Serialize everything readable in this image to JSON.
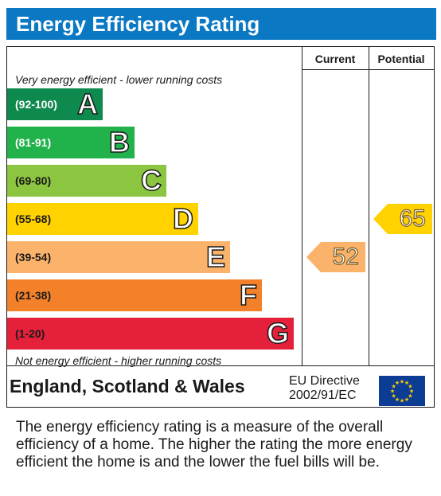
{
  "title": "Energy Efficiency Rating",
  "columns": {
    "current": "Current",
    "potential": "Potential"
  },
  "top_caption": "Very energy efficient - lower running costs",
  "bottom_caption": "Not energy efficient - higher running costs",
  "footer": {
    "country": "England, Scotland & Wales",
    "directive_line1": "EU Directive",
    "directive_line2": "2002/91/EC"
  },
  "description": "The energy efficiency rating is a measure of the overall efficiency of a home. The higher the rating the more energy efficient the home is and the lower the fuel bills will be.",
  "chart_data": {
    "type": "bar",
    "title": "Energy Efficiency Rating",
    "categories": [
      "A",
      "B",
      "C",
      "D",
      "E",
      "F",
      "G"
    ],
    "bands": [
      {
        "letter": "A",
        "range": "(92-100)",
        "color": "#0f8a4e",
        "range_color": "#ffffff"
      },
      {
        "letter": "B",
        "range": "(81-91)",
        "color": "#22b24c",
        "range_color": "#ffffff"
      },
      {
        "letter": "C",
        "range": "(69-80)",
        "color": "#8cc540",
        "range_color": "#1a1a1a"
      },
      {
        "letter": "D",
        "range": "(55-68)",
        "color": "#ffd200",
        "range_color": "#1a1a1a"
      },
      {
        "letter": "E",
        "range": "(39-54)",
        "color": "#fbb26a",
        "range_color": "#1a1a1a"
      },
      {
        "letter": "F",
        "range": "(21-38)",
        "color": "#f38129",
        "range_color": "#1a1a1a"
      },
      {
        "letter": "G",
        "range": "(1-20)",
        "color": "#e5203a",
        "range_color": "#1a1a1a"
      }
    ],
    "series": [
      {
        "name": "Current",
        "value": 52,
        "band": "E",
        "color": "#fbb26a"
      },
      {
        "name": "Potential",
        "value": 65,
        "band": "D",
        "color": "#ffd200"
      }
    ]
  }
}
